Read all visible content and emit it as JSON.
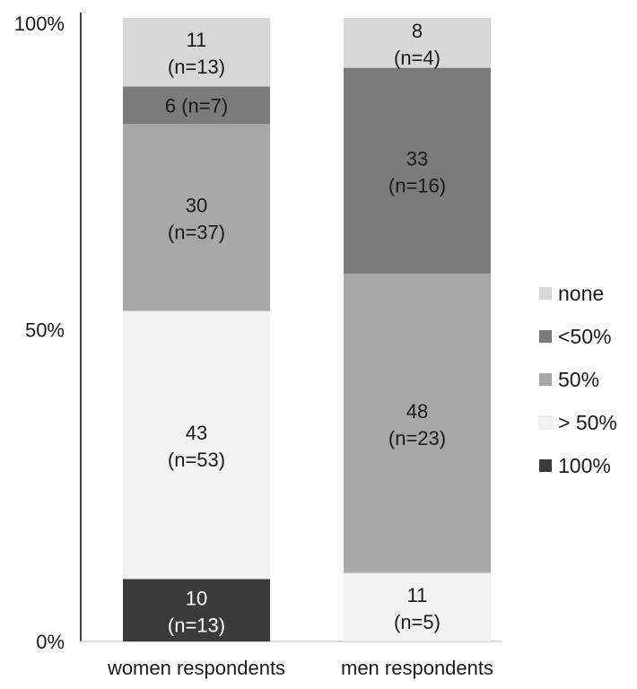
{
  "chart_data": {
    "type": "bar",
    "stacked": true,
    "title": "",
    "xlabel": "",
    "ylabel": "",
    "ylim": [
      0,
      100
    ],
    "y_ticks": [
      "0%",
      "50%",
      "100%"
    ],
    "categories": [
      "women respondents",
      "men respondents"
    ],
    "series": [
      {
        "name": "100%",
        "color": "#3b3b3b",
        "text_color": "#ffffff",
        "values": [
          10,
          0
        ],
        "labels": [
          {
            "value": "10",
            "count": "(n=13)"
          },
          null
        ]
      },
      {
        "name": "> 50%",
        "color": "#f2f2f2",
        "text_color": "#1a1a1a",
        "values": [
          43,
          11
        ],
        "labels": [
          {
            "value": "43",
            "count": "(n=53)"
          },
          {
            "value": "11",
            "count": "(n=5)"
          }
        ]
      },
      {
        "name": "50%",
        "color": "#a8a8a8",
        "text_color": "#1a1a1a",
        "values": [
          30,
          48
        ],
        "labels": [
          {
            "value": "30",
            "count": "(n=37)"
          },
          {
            "value": "48",
            "count": "(n=23)"
          }
        ]
      },
      {
        "name": "<50%",
        "color": "#7b7b7b",
        "text_color": "#1a1a1a",
        "values": [
          6,
          33
        ],
        "labels": [
          {
            "value": "6 (n=7)",
            "count": ""
          },
          {
            "value": "33",
            "count": "(n=16)"
          }
        ]
      },
      {
        "name": "none",
        "color": "#d7d7d7",
        "text_color": "#1a1a1a",
        "values": [
          11,
          8
        ],
        "labels": [
          {
            "value": "11",
            "count": "(n=13)"
          },
          {
            "value": "8",
            "count": "(n=4)"
          }
        ]
      }
    ],
    "legend": {
      "placement": "right",
      "order": [
        "none",
        "<50%",
        "50%",
        "> 50%",
        "100%"
      ]
    },
    "grid": false
  }
}
